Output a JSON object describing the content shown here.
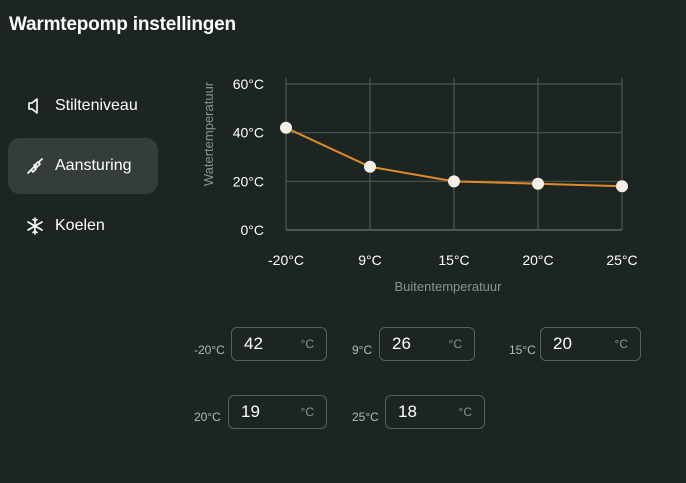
{
  "header": {
    "title": "Warmtepomp instellingen"
  },
  "sidebar": {
    "items": [
      {
        "label": "Stilteniveau",
        "icon": "speaker-icon",
        "active": false
      },
      {
        "label": "Aansturing",
        "icon": "plug-icon",
        "active": true
      },
      {
        "label": "Koelen",
        "icon": "snowflake-icon",
        "active": false
      }
    ]
  },
  "chart_data": {
    "type": "line",
    "categories": [
      "-20°C",
      "9°C",
      "15°C",
      "20°C",
      "25°C"
    ],
    "values": [
      42,
      26,
      20,
      19,
      18
    ],
    "y_ticks": [
      "0°C",
      "20°C",
      "40°C",
      "60°C"
    ],
    "ylim": [
      0,
      60
    ],
    "xlabel": "Buitentemperatuur",
    "ylabel": "Watertemperatuur",
    "grid": true,
    "line_color": "#e08a2c",
    "marker_color": "#f4f0e6"
  },
  "fields": [
    {
      "label": "-20°C",
      "value": "42",
      "unit": "°C"
    },
    {
      "label": "9°C",
      "value": "26",
      "unit": "°C"
    },
    {
      "label": "15°C",
      "value": "20",
      "unit": "°C"
    },
    {
      "label": "20°C",
      "value": "19",
      "unit": "°C"
    },
    {
      "label": "25°C",
      "value": "18",
      "unit": "°C"
    }
  ]
}
